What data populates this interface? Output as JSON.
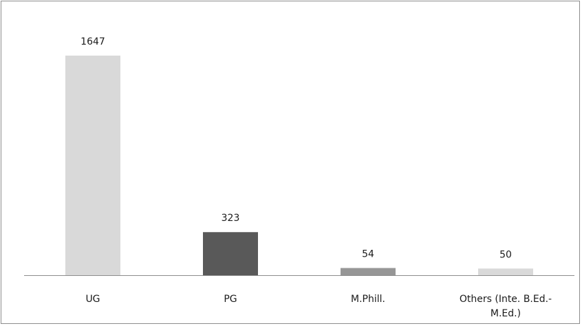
{
  "chart_data": {
    "type": "bar",
    "categories": [
      "UG",
      "PG",
      "M.Phill.",
      "Others (Inte. B.Ed.-M.Ed.)"
    ],
    "category_lines": [
      [
        "UG"
      ],
      [
        "PG"
      ],
      [
        "M.Phill."
      ],
      [
        "Others (Inte. B.Ed.-",
        "M.Ed.)"
      ]
    ],
    "values": [
      1647,
      323,
      54,
      50
    ],
    "bar_colors": [
      "#d9d9d9",
      "#595959",
      "#969696",
      "#d9d9d9"
    ],
    "title": "",
    "xlabel": "",
    "ylabel": "",
    "ylim": [
      0,
      1647
    ],
    "grid": false,
    "legend": "none"
  }
}
